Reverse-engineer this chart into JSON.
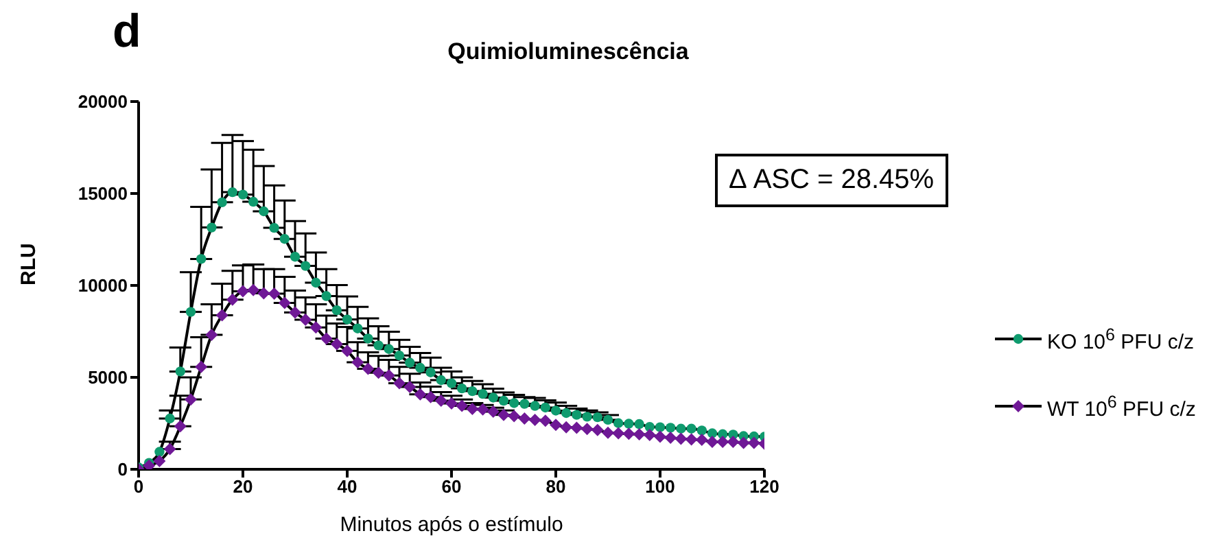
{
  "chart_data": {
    "type": "line",
    "title": "Quimioluminescência",
    "xlabel": "Minutos após o estímulo",
    "ylabel": "RLU",
    "annotations": [
      "d",
      "Δ ASC = 28.45%"
    ],
    "x": [
      0,
      2,
      4,
      6,
      8,
      10,
      12,
      14,
      16,
      18,
      20,
      22,
      24,
      26,
      28,
      30,
      32,
      34,
      36,
      38,
      40,
      42,
      44,
      46,
      48,
      50,
      52,
      54,
      56,
      58,
      60,
      62,
      64,
      66,
      68,
      70,
      72,
      74,
      76,
      78,
      80,
      82,
      84,
      86,
      88,
      90,
      92,
      94,
      96,
      98,
      100,
      102,
      104,
      106,
      108,
      110,
      112,
      114,
      116,
      118,
      120
    ],
    "xlim": [
      0,
      120
    ],
    "xticks": [
      0,
      20,
      40,
      60,
      80,
      100,
      120
    ],
    "ylim": [
      0,
      20000
    ],
    "yticks": [
      0,
      5000,
      10000,
      15000,
      20000
    ],
    "legend": "right",
    "grid": false,
    "series": [
      {
        "name": "KO 10$^{6}$ PFU c/z",
        "color": "#0f9b6e",
        "marker": "circle",
        "values": [
          100,
          350,
          950,
          2760,
          5320,
          8560,
          11440,
          13150,
          14520,
          15070,
          14940,
          14550,
          14030,
          13130,
          12530,
          11560,
          11060,
          10150,
          9420,
          8650,
          8150,
          7660,
          7110,
          6740,
          6540,
          6190,
          5800,
          5520,
          5270,
          4850,
          4680,
          4400,
          4250,
          4100,
          3900,
          3730,
          3600,
          3560,
          3450,
          3360,
          3190,
          3060,
          2960,
          2860,
          2830,
          2690,
          2510,
          2480,
          2460,
          2310,
          2290,
          2260,
          2210,
          2210,
          2110,
          1960,
          1910,
          1890,
          1810,
          1790,
          1770
        ],
        "errors": [
          null,
          null,
          null,
          [
            2760,
            3200
          ],
          [
            5320,
            6620
          ],
          [
            8560,
            10720
          ],
          [
            11440,
            14270
          ],
          [
            13150,
            16310
          ],
          [
            14520,
            17750
          ],
          [
            15070,
            18180
          ],
          [
            14940,
            17850
          ],
          [
            14550,
            17380
          ],
          [
            14030,
            16490
          ],
          [
            13130,
            15440
          ],
          [
            12530,
            14620
          ],
          [
            11560,
            13500
          ],
          [
            11060,
            12830
          ],
          [
            10150,
            11790
          ],
          [
            9420,
            10890
          ],
          [
            8650,
            10020
          ],
          [
            8150,
            9400
          ],
          [
            7660,
            8830
          ],
          [
            7110,
            8210
          ],
          [
            6740,
            7780
          ],
          [
            6540,
            7480
          ],
          [
            6190,
            7040
          ],
          [
            5800,
            6660
          ],
          [
            5520,
            6320
          ],
          [
            5270,
            6070
          ],
          [
            4850,
            5520
          ],
          [
            4680,
            5320
          ],
          [
            4400,
            5000
          ],
          [
            4250,
            4800
          ],
          [
            4100,
            4630
          ],
          [
            3900,
            4380
          ],
          [
            3730,
            4180
          ],
          [
            3600,
            4050
          ],
          [
            3560,
            3930
          ],
          [
            3450,
            3880
          ],
          [
            3360,
            3750
          ],
          [
            3190,
            3630
          ],
          [
            3060,
            3450
          ],
          [
            2960,
            3300
          ],
          [
            2860,
            3200
          ],
          [
            2830,
            3100
          ],
          [
            2690,
            2950
          ],
          null,
          null,
          null,
          null,
          null,
          null,
          null,
          null,
          null,
          null,
          null,
          null,
          null,
          null,
          null
        ]
      },
      {
        "name": "WT 10$^{6}$ PFU c/z",
        "color": "#6f1896",
        "marker": "diamond",
        "values": [
          0,
          200,
          450,
          1100,
          2340,
          3800,
          5570,
          7310,
          8380,
          9230,
          9680,
          9750,
          9570,
          9550,
          9050,
          8530,
          8130,
          7710,
          7110,
          6810,
          6440,
          5820,
          5470,
          5250,
          5100,
          4680,
          4480,
          4080,
          3930,
          3730,
          3580,
          3450,
          3280,
          3260,
          3130,
          2960,
          2890,
          2760,
          2690,
          2640,
          2420,
          2290,
          2260,
          2190,
          2140,
          1990,
          1960,
          1930,
          1900,
          1870,
          1770,
          1720,
          1660,
          1620,
          1600,
          1490,
          1490,
          1490,
          1440,
          1440,
          1390
        ],
        "errors": [
          null,
          null,
          null,
          [
            1100,
            1500
          ],
          [
            2340,
            4000
          ],
          [
            3800,
            5000
          ],
          [
            5570,
            7180
          ],
          [
            7310,
            8970
          ],
          [
            8380,
            10090
          ],
          [
            9230,
            10790
          ],
          [
            9680,
            11090
          ],
          [
            9750,
            11140
          ],
          [
            9570,
            10890
          ],
          [
            9550,
            10890
          ],
          [
            9050,
            10470
          ],
          [
            8530,
            9720
          ],
          [
            8130,
            9350
          ],
          [
            7710,
            8970
          ],
          [
            7110,
            8360
          ],
          [
            6810,
            7930
          ],
          [
            6440,
            7740
          ],
          [
            5820,
            6910
          ],
          [
            5470,
            6360
          ],
          [
            5250,
            6170
          ],
          [
            5100,
            5950
          ],
          [
            4680,
            5570
          ],
          [
            4480,
            5200
          ],
          [
            4080,
            4720
          ],
          [
            3930,
            4500
          ],
          [
            3730,
            4200
          ],
          [
            3580,
            4000
          ],
          [
            3450,
            3800
          ],
          [
            3280,
            3600
          ],
          [
            3260,
            3500
          ],
          [
            3130,
            3350
          ],
          [
            2960,
            3200
          ],
          null,
          null,
          null,
          null,
          null,
          null,
          null,
          null,
          null,
          null,
          null,
          null,
          null,
          null,
          null,
          null,
          null,
          null,
          null,
          null,
          null,
          null,
          null,
          null,
          null
        ]
      }
    ]
  }
}
